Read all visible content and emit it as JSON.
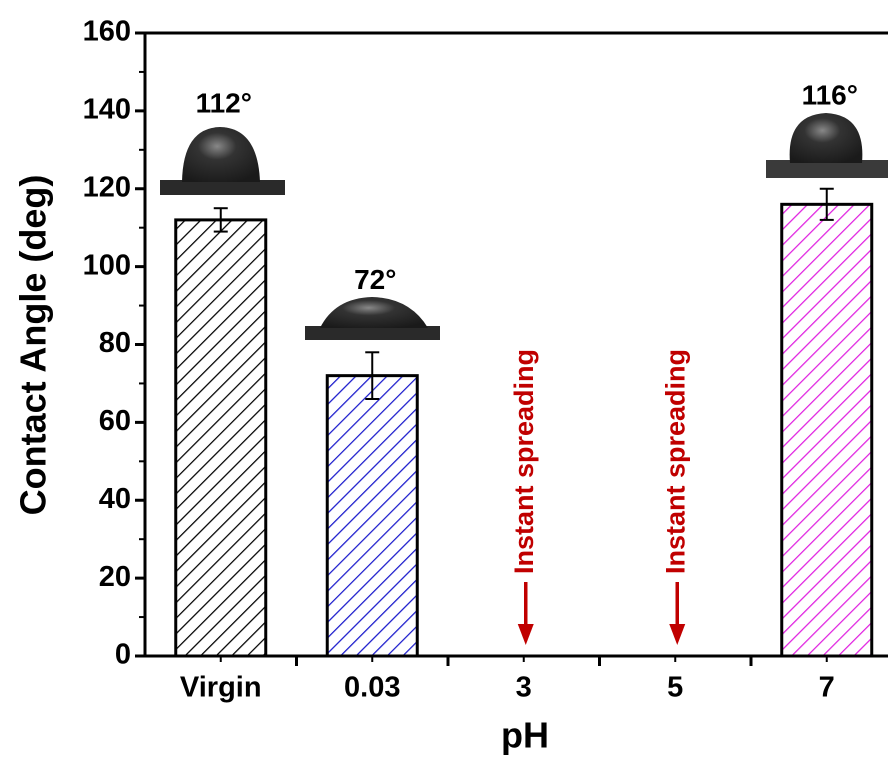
{
  "chart_data": {
    "type": "bar",
    "x_label": "pH",
    "y_label": "Contact Angle (deg)",
    "categories": [
      "Virgin",
      "0.03",
      "3",
      "5",
      "7"
    ],
    "values": [
      112,
      72,
      null,
      null,
      116
    ],
    "errors": [
      3,
      6,
      null,
      null,
      4
    ],
    "value_labels": [
      "112°",
      "72°",
      null,
      null,
      "116°"
    ],
    "colors": [
      "#000000",
      "#1a1acc",
      null,
      null,
      "#e020e0"
    ],
    "annotations": [
      null,
      null,
      "Instant spreading",
      "Instant spreading",
      null
    ],
    "annotation_color": "#c00000",
    "ylim": [
      0,
      160
    ],
    "yticks": [
      0,
      20,
      40,
      60,
      80,
      100,
      120,
      140,
      160
    ]
  }
}
